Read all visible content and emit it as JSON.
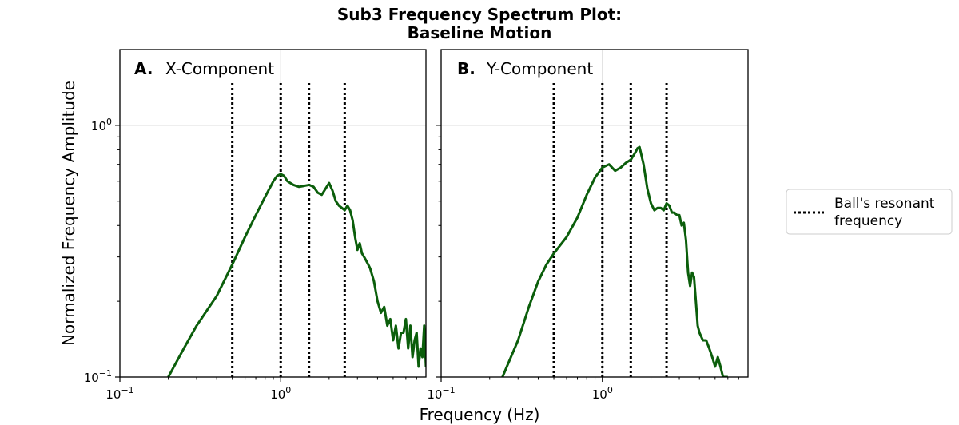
{
  "chart_data": {
    "title_line1": "Sub3 Frequency Spectrum Plot:",
    "title_line2": "Baseline Motion",
    "xlabel": "Frequency (Hz)",
    "ylabel": "Normalized Frequency Amplitude",
    "x_scale": "log",
    "y_scale": "log",
    "xlim": [
      0.1,
      8
    ],
    "ylim": [
      0.1,
      2
    ],
    "x_ticks": [
      {
        "value": 0.1,
        "base": "10",
        "exp": "−1"
      },
      {
        "value": 1,
        "base": "10",
        "exp": "0"
      }
    ],
    "y_ticks": [
      {
        "value": 0.1,
        "base": "10",
        "exp": "−1"
      },
      {
        "value": 1,
        "base": "10",
        "exp": "0"
      }
    ],
    "grid": "major",
    "legend_position": "right, outside plot",
    "colors": {
      "line": "#0b5e0b",
      "resonance": "#000000",
      "grid": "#dddddd"
    },
    "resonance_label": "Ball's resonant frequency",
    "resonance_label_lines": [
      "Ball's resonant",
      "frequency"
    ],
    "resonant_frequencies": [
      0.5,
      1.0,
      1.5,
      2.5
    ],
    "panels": [
      {
        "tag": "A.",
        "name": "X-Component",
        "type": "line",
        "x": [
          0.2,
          0.25,
          0.3,
          0.4,
          0.5,
          0.6,
          0.7,
          0.8,
          0.9,
          0.95,
          1.0,
          1.05,
          1.1,
          1.2,
          1.3,
          1.4,
          1.5,
          1.6,
          1.7,
          1.8,
          1.9,
          2.0,
          2.1,
          2.2,
          2.3,
          2.4,
          2.5,
          2.6,
          2.7,
          2.8,
          2.9,
          3.0,
          3.1,
          3.2,
          3.3,
          3.4,
          3.5,
          3.6,
          3.8,
          4.0,
          4.2,
          4.4,
          4.6,
          4.8,
          5.0,
          5.2,
          5.4,
          5.6,
          5.8,
          6.0,
          6.2,
          6.4,
          6.6,
          6.8,
          7.0,
          7.2,
          7.4,
          7.6,
          7.8,
          8.0
        ],
        "y": [
          0.1,
          0.13,
          0.16,
          0.21,
          0.28,
          0.36,
          0.44,
          0.52,
          0.6,
          0.63,
          0.64,
          0.63,
          0.6,
          0.58,
          0.57,
          0.575,
          0.58,
          0.57,
          0.54,
          0.53,
          0.56,
          0.59,
          0.55,
          0.5,
          0.48,
          0.47,
          0.46,
          0.48,
          0.46,
          0.42,
          0.36,
          0.32,
          0.34,
          0.31,
          0.3,
          0.29,
          0.28,
          0.27,
          0.24,
          0.2,
          0.18,
          0.19,
          0.16,
          0.17,
          0.14,
          0.16,
          0.13,
          0.15,
          0.15,
          0.17,
          0.13,
          0.16,
          0.12,
          0.14,
          0.15,
          0.11,
          0.13,
          0.12,
          0.16,
          0.11
        ]
      },
      {
        "tag": "B.",
        "name": "Y-Component",
        "type": "line",
        "x": [
          0.24,
          0.3,
          0.35,
          0.4,
          0.45,
          0.5,
          0.6,
          0.7,
          0.8,
          0.9,
          1.0,
          1.1,
          1.2,
          1.3,
          1.4,
          1.5,
          1.6,
          1.65,
          1.7,
          1.8,
          1.9,
          2.0,
          2.1,
          2.2,
          2.3,
          2.4,
          2.5,
          2.6,
          2.7,
          2.8,
          2.9,
          3.0,
          3.1,
          3.2,
          3.3,
          3.4,
          3.5,
          3.6,
          3.7,
          3.8,
          3.9,
          4.0,
          4.2,
          4.4,
          4.6,
          4.8,
          5.0,
          5.2,
          5.4,
          5.6,
          5.8,
          6.0
        ],
        "y": [
          0.1,
          0.14,
          0.19,
          0.24,
          0.28,
          0.31,
          0.36,
          0.43,
          0.53,
          0.62,
          0.68,
          0.7,
          0.66,
          0.68,
          0.71,
          0.73,
          0.78,
          0.81,
          0.82,
          0.7,
          0.56,
          0.49,
          0.46,
          0.47,
          0.47,
          0.46,
          0.49,
          0.48,
          0.45,
          0.45,
          0.44,
          0.44,
          0.4,
          0.41,
          0.35,
          0.26,
          0.23,
          0.26,
          0.25,
          0.2,
          0.16,
          0.15,
          0.14,
          0.14,
          0.13,
          0.12,
          0.11,
          0.12,
          0.11,
          0.1,
          0.1,
          0.1
        ]
      }
    ]
  }
}
